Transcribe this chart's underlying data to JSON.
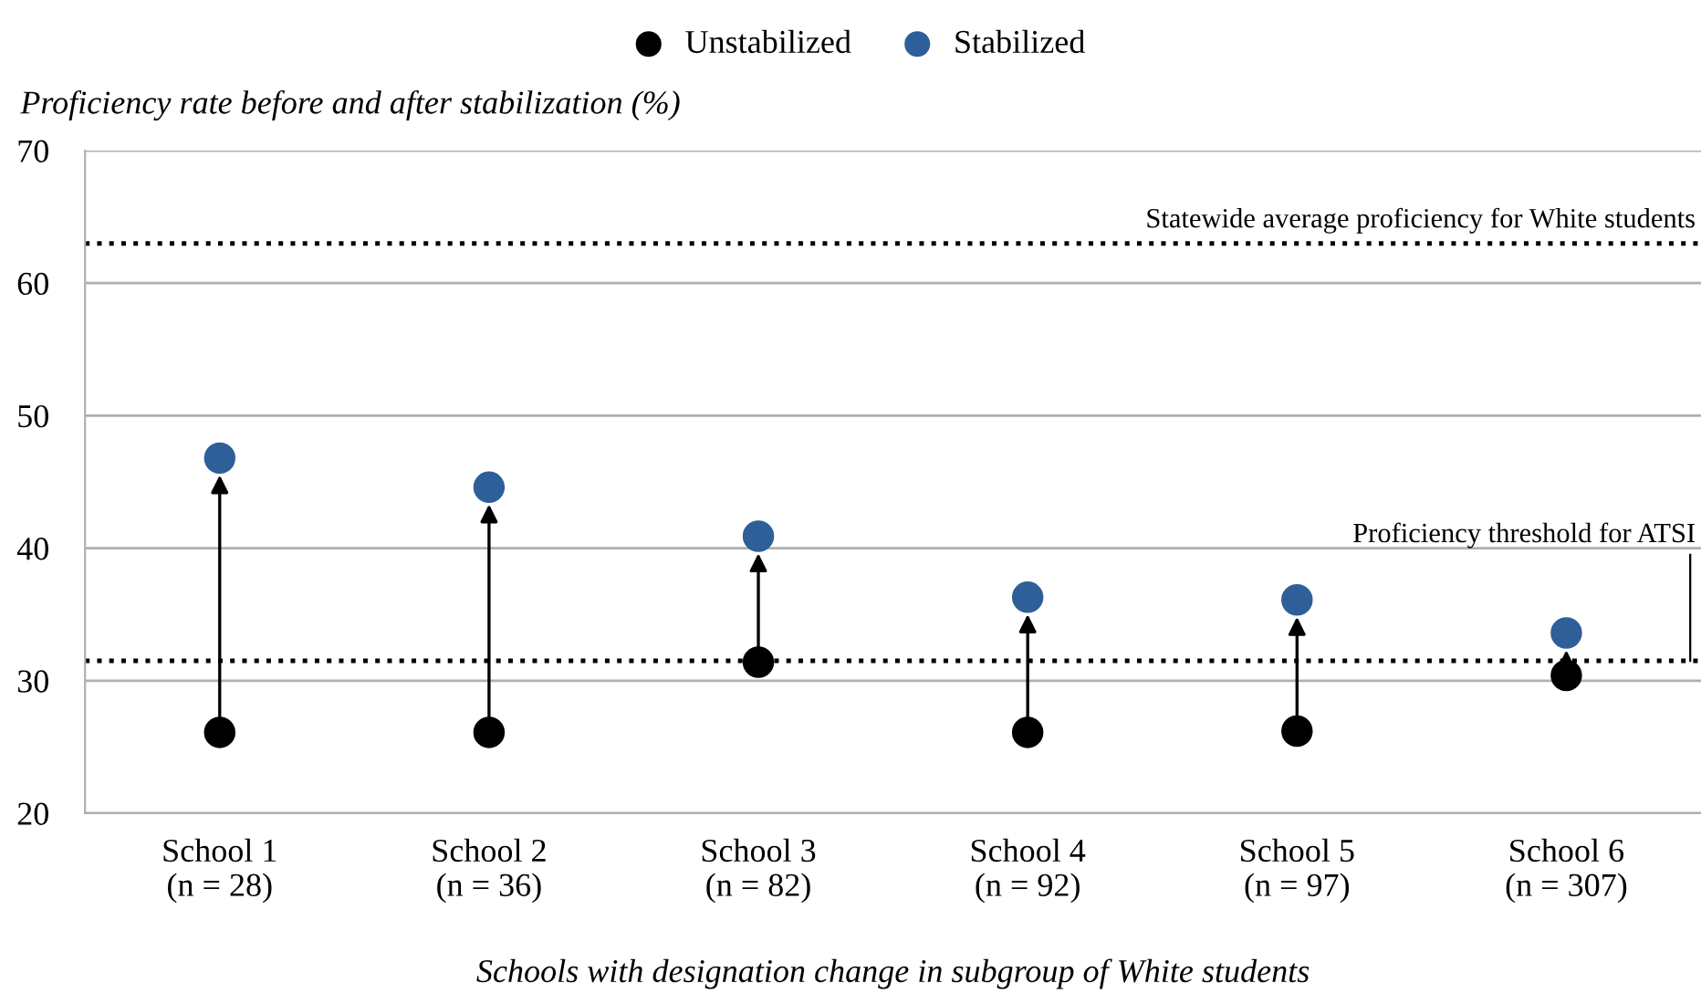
{
  "chart_data": {
    "type": "scatter",
    "ylabel": "Proficiency rate before and after stabilization (%)",
    "xlabel": "Schools with designation change in subgroup of White students",
    "categories": [
      "School 1\n(n = 28)",
      "School 2\n(n = 36)",
      "School 3\n(n = 82)",
      "School 4\n(n = 92)",
      "School 5\n(n = 97)",
      "School 6\n(n = 307)"
    ],
    "series": [
      {
        "name": "Unstabilized",
        "color": "#000000",
        "values": [
          26.1,
          26.1,
          31.4,
          26.1,
          26.2,
          30.4
        ]
      },
      {
        "name": "Stabilized",
        "color": "#2f5f98",
        "values": [
          46.8,
          44.6,
          40.9,
          36.3,
          36.1,
          33.6
        ]
      }
    ],
    "ylim": [
      20,
      70
    ],
    "yticks": [
      20,
      30,
      40,
      50,
      60,
      70
    ],
    "ref_lines": [
      {
        "axis": "y",
        "value": 63,
        "label": "Statewide average proficiency for White students",
        "line_style": "dotted",
        "color": "#000000"
      },
      {
        "axis": "y",
        "value": 31.5,
        "label": "Proficiency threshold for ATSI",
        "line_style": "dotted",
        "color": "#000000"
      }
    ],
    "grid": "y",
    "legend": "top",
    "marker": "circle"
  }
}
